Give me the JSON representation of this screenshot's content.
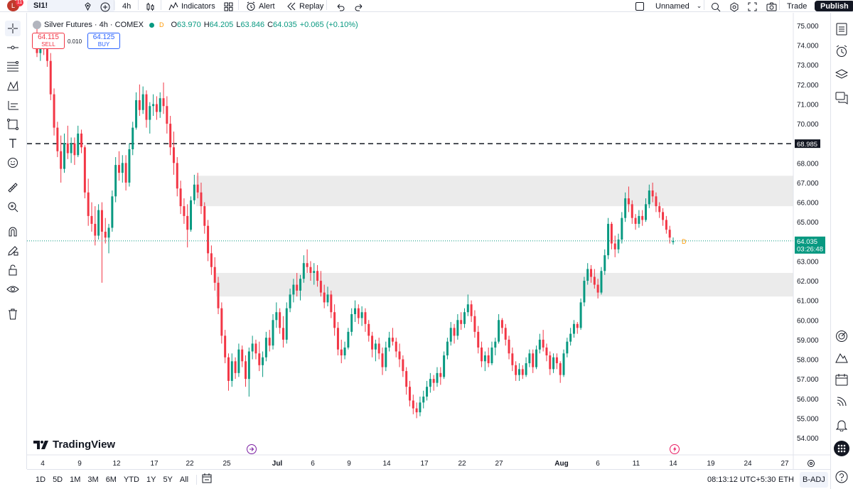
{
  "toolbar": {
    "avatar_letter": "L",
    "notification_count": "11",
    "symbol": "SI1!",
    "interval": "4h",
    "indicators_label": "Indicators",
    "alert_label": "Alert",
    "replay_label": "Replay",
    "layout_name": "Unnamed",
    "trade_label": "Trade",
    "publish_label": "Publish"
  },
  "legend": {
    "title": "Silver Futures · 4h · COMEX",
    "flag": "D",
    "open_label": "O",
    "open": "63.970",
    "high_label": "H",
    "high": "64.205",
    "low_label": "L",
    "low": "63.846",
    "close_label": "C",
    "close": "64.035",
    "change": "+0.065 (+0.10%)"
  },
  "order": {
    "sell_price": "64.115",
    "sell_label": "SELL",
    "spread": "0.010",
    "buy_price": "64.125",
    "buy_label": "BUY"
  },
  "price_tag": {
    "price": "64.035",
    "countdown": "03:26:48"
  },
  "hline_tag": "68.985",
  "brand": "TradingView",
  "bottom": {
    "ranges": [
      "1D",
      "5D",
      "1M",
      "3M",
      "6M",
      "YTD",
      "1Y",
      "5Y",
      "All"
    ],
    "clock": "08:13:12 UTC+5:30",
    "session": "ETH",
    "adjustment": "B-ADJ"
  },
  "colors": {
    "up": "#089981",
    "down": "#f23645",
    "accent": "#2962ff",
    "zone": "#ebebeb"
  },
  "chart_data": {
    "type": "candlestick",
    "symbol": "SI1!",
    "interval": "4h",
    "y_axis": {
      "ticks": [
        75,
        74,
        73,
        72,
        71,
        70,
        69,
        68,
        67,
        66,
        65,
        64,
        63,
        62,
        61,
        60,
        59,
        58,
        57,
        56,
        55,
        54
      ],
      "tick_labels": [
        "75.000",
        "74.000",
        "73.000",
        "72.000",
        "71.000",
        "70.000",
        "69.000",
        "68.000",
        "67.000",
        "66.000",
        "65.000",
        "64.000",
        "63.000",
        "62.000",
        "61.000",
        "60.000",
        "59.000",
        "58.000",
        "57.000",
        "56.000",
        "55.000",
        "54.000"
      ],
      "range": [
        53.5,
        75.1
      ]
    },
    "x_axis": {
      "labels": [
        "4",
        "9",
        "12",
        "17",
        "22",
        "25",
        "Jul",
        "6",
        "9",
        "14",
        "17",
        "22",
        "27",
        "Aug",
        "6",
        "11",
        "14",
        "19",
        "24",
        "27"
      ]
    },
    "zones": [
      {
        "from": 65.8,
        "to": 67.35
      },
      {
        "from": 61.2,
        "to": 62.4
      }
    ],
    "horizontal_line": {
      "value": 68.985,
      "style": "dashed"
    },
    "last_price": 64.035,
    "candles": [
      {
        "o": 74.6,
        "h": 74.9,
        "l": 73.4,
        "c": 73.6
      },
      {
        "o": 73.6,
        "h": 74.1,
        "l": 73.2,
        "c": 73.9
      },
      {
        "o": 73.9,
        "h": 74.4,
        "l": 73.5,
        "c": 73.8
      },
      {
        "o": 73.8,
        "h": 74.3,
        "l": 72.9,
        "c": 73.2
      },
      {
        "o": 73.2,
        "h": 73.6,
        "l": 71.2,
        "c": 71.5
      },
      {
        "o": 71.5,
        "h": 71.8,
        "l": 69.4,
        "c": 69.8
      },
      {
        "o": 69.8,
        "h": 70.1,
        "l": 68.3,
        "c": 68.6
      },
      {
        "o": 68.6,
        "h": 69.4,
        "l": 67.0,
        "c": 67.7
      },
      {
        "o": 67.7,
        "h": 69.5,
        "l": 67.5,
        "c": 69.0
      },
      {
        "o": 69.0,
        "h": 69.9,
        "l": 68.2,
        "c": 68.5
      },
      {
        "o": 68.5,
        "h": 69.3,
        "l": 68.0,
        "c": 69.0
      },
      {
        "o": 69.0,
        "h": 69.3,
        "l": 67.9,
        "c": 68.4
      },
      {
        "o": 68.4,
        "h": 69.9,
        "l": 68.3,
        "c": 69.5
      },
      {
        "o": 69.5,
        "h": 69.7,
        "l": 68.5,
        "c": 68.8
      },
      {
        "o": 68.8,
        "h": 68.9,
        "l": 66.2,
        "c": 66.5
      },
      {
        "o": 66.5,
        "h": 67.2,
        "l": 64.8,
        "c": 65.3
      },
      {
        "o": 65.3,
        "h": 66.0,
        "l": 64.5,
        "c": 64.9
      },
      {
        "o": 64.9,
        "h": 65.8,
        "l": 63.8,
        "c": 64.3
      },
      {
        "o": 64.3,
        "h": 65.9,
        "l": 64.1,
        "c": 65.6
      },
      {
        "o": 65.6,
        "h": 66.0,
        "l": 61.9,
        "c": 64.5
      },
      {
        "o": 64.5,
        "h": 65.2,
        "l": 63.9,
        "c": 64.2
      },
      {
        "o": 64.2,
        "h": 64.9,
        "l": 63.4,
        "c": 64.7
      },
      {
        "o": 64.7,
        "h": 66.6,
        "l": 64.5,
        "c": 66.3
      },
      {
        "o": 66.3,
        "h": 68.3,
        "l": 66.0,
        "c": 67.9
      },
      {
        "o": 67.9,
        "h": 68.6,
        "l": 67.1,
        "c": 67.5
      },
      {
        "o": 67.5,
        "h": 68.4,
        "l": 67.0,
        "c": 68.0
      },
      {
        "o": 68.0,
        "h": 68.4,
        "l": 66.6,
        "c": 67.0
      },
      {
        "o": 67.0,
        "h": 69.0,
        "l": 66.8,
        "c": 68.7
      },
      {
        "o": 68.7,
        "h": 70.1,
        "l": 68.4,
        "c": 69.8
      },
      {
        "o": 69.8,
        "h": 71.6,
        "l": 69.7,
        "c": 71.2
      },
      {
        "o": 71.2,
        "h": 72.0,
        "l": 70.4,
        "c": 70.7
      },
      {
        "o": 70.7,
        "h": 71.9,
        "l": 70.5,
        "c": 71.5
      },
      {
        "o": 71.5,
        "h": 71.7,
        "l": 69.8,
        "c": 70.2
      },
      {
        "o": 70.2,
        "h": 71.1,
        "l": 69.5,
        "c": 70.9
      },
      {
        "o": 70.9,
        "h": 71.5,
        "l": 70.4,
        "c": 71.0
      },
      {
        "o": 71.0,
        "h": 71.4,
        "l": 70.2,
        "c": 70.6
      },
      {
        "o": 70.6,
        "h": 71.6,
        "l": 70.3,
        "c": 71.3
      },
      {
        "o": 71.3,
        "h": 72.1,
        "l": 70.5,
        "c": 70.9
      },
      {
        "o": 70.9,
        "h": 71.4,
        "l": 69.5,
        "c": 70.0
      },
      {
        "o": 70.0,
        "h": 70.4,
        "l": 68.4,
        "c": 68.8
      },
      {
        "o": 68.8,
        "h": 69.6,
        "l": 67.4,
        "c": 68.0
      },
      {
        "o": 68.0,
        "h": 68.3,
        "l": 66.3,
        "c": 66.7
      },
      {
        "o": 66.7,
        "h": 67.1,
        "l": 65.4,
        "c": 65.8
      },
      {
        "o": 65.8,
        "h": 66.2,
        "l": 64.9,
        "c": 65.3
      },
      {
        "o": 65.3,
        "h": 65.9,
        "l": 63.7,
        "c": 64.6
      },
      {
        "o": 64.6,
        "h": 66.3,
        "l": 64.5,
        "c": 66.1
      },
      {
        "o": 66.1,
        "h": 67.4,
        "l": 65.9,
        "c": 66.9
      },
      {
        "o": 66.9,
        "h": 67.5,
        "l": 66.2,
        "c": 66.5
      },
      {
        "o": 66.5,
        "h": 67.0,
        "l": 65.4,
        "c": 65.8
      },
      {
        "o": 65.8,
        "h": 66.0,
        "l": 64.4,
        "c": 64.8
      },
      {
        "o": 64.8,
        "h": 65.1,
        "l": 63.0,
        "c": 63.4
      },
      {
        "o": 63.4,
        "h": 63.8,
        "l": 62.3,
        "c": 62.7
      },
      {
        "o": 62.7,
        "h": 63.2,
        "l": 61.5,
        "c": 61.9
      },
      {
        "o": 61.9,
        "h": 62.2,
        "l": 60.3,
        "c": 60.6
      },
      {
        "o": 60.6,
        "h": 60.9,
        "l": 58.8,
        "c": 59.2
      },
      {
        "o": 59.2,
        "h": 59.5,
        "l": 57.8,
        "c": 58.1
      },
      {
        "o": 58.1,
        "h": 58.3,
        "l": 56.4,
        "c": 56.9
      },
      {
        "o": 56.9,
        "h": 58.3,
        "l": 56.6,
        "c": 57.9
      },
      {
        "o": 57.9,
        "h": 58.1,
        "l": 57.0,
        "c": 57.3
      },
      {
        "o": 57.3,
        "h": 58.8,
        "l": 57.1,
        "c": 58.5
      },
      {
        "o": 58.5,
        "h": 58.7,
        "l": 57.6,
        "c": 57.9
      },
      {
        "o": 57.9,
        "h": 58.2,
        "l": 56.6,
        "c": 57.0
      },
      {
        "o": 57.0,
        "h": 58.6,
        "l": 56.1,
        "c": 58.4
      },
      {
        "o": 58.4,
        "h": 59.2,
        "l": 58.0,
        "c": 58.8
      },
      {
        "o": 58.8,
        "h": 59.0,
        "l": 58.0,
        "c": 58.3
      },
      {
        "o": 58.3,
        "h": 58.9,
        "l": 57.4,
        "c": 57.7
      },
      {
        "o": 57.7,
        "h": 58.4,
        "l": 57.1,
        "c": 58.1
      },
      {
        "o": 58.1,
        "h": 59.4,
        "l": 57.9,
        "c": 59.1
      },
      {
        "o": 59.1,
        "h": 59.5,
        "l": 58.4,
        "c": 58.7
      },
      {
        "o": 58.7,
        "h": 60.3,
        "l": 58.5,
        "c": 60.0
      },
      {
        "o": 60.0,
        "h": 60.9,
        "l": 59.6,
        "c": 60.4
      },
      {
        "o": 60.4,
        "h": 60.6,
        "l": 59.3,
        "c": 59.6
      },
      {
        "o": 59.6,
        "h": 60.2,
        "l": 58.6,
        "c": 59.0
      },
      {
        "o": 59.0,
        "h": 60.9,
        "l": 58.8,
        "c": 60.6
      },
      {
        "o": 60.6,
        "h": 61.6,
        "l": 60.4,
        "c": 61.3
      },
      {
        "o": 61.3,
        "h": 62.1,
        "l": 60.9,
        "c": 61.8
      },
      {
        "o": 61.8,
        "h": 62.4,
        "l": 61.2,
        "c": 61.5
      },
      {
        "o": 61.5,
        "h": 62.3,
        "l": 61.0,
        "c": 62.1
      },
      {
        "o": 62.1,
        "h": 63.3,
        "l": 61.9,
        "c": 62.9
      },
      {
        "o": 62.9,
        "h": 63.6,
        "l": 62.4,
        "c": 62.7
      },
      {
        "o": 62.7,
        "h": 63.0,
        "l": 62.0,
        "c": 62.4
      },
      {
        "o": 62.4,
        "h": 62.9,
        "l": 61.8,
        "c": 62.5
      },
      {
        "o": 62.5,
        "h": 62.8,
        "l": 61.7,
        "c": 62.0
      },
      {
        "o": 62.0,
        "h": 62.5,
        "l": 61.2,
        "c": 61.4
      },
      {
        "o": 61.4,
        "h": 61.8,
        "l": 60.6,
        "c": 60.9
      },
      {
        "o": 60.9,
        "h": 61.7,
        "l": 60.7,
        "c": 61.3
      },
      {
        "o": 61.3,
        "h": 61.5,
        "l": 60.1,
        "c": 60.4
      },
      {
        "o": 60.4,
        "h": 60.8,
        "l": 59.2,
        "c": 59.6
      },
      {
        "o": 59.6,
        "h": 59.9,
        "l": 58.2,
        "c": 58.5
      },
      {
        "o": 58.5,
        "h": 59.0,
        "l": 57.8,
        "c": 58.2
      },
      {
        "o": 58.2,
        "h": 58.9,
        "l": 58.0,
        "c": 58.6
      },
      {
        "o": 58.6,
        "h": 59.6,
        "l": 58.5,
        "c": 59.4
      },
      {
        "o": 59.4,
        "h": 60.6,
        "l": 59.2,
        "c": 60.3
      },
      {
        "o": 60.3,
        "h": 61.0,
        "l": 59.9,
        "c": 60.6
      },
      {
        "o": 60.6,
        "h": 60.8,
        "l": 59.8,
        "c": 60.1
      },
      {
        "o": 60.1,
        "h": 60.7,
        "l": 59.7,
        "c": 60.4
      },
      {
        "o": 60.4,
        "h": 60.6,
        "l": 59.4,
        "c": 59.8
      },
      {
        "o": 59.8,
        "h": 60.0,
        "l": 58.9,
        "c": 59.2
      },
      {
        "o": 59.2,
        "h": 59.4,
        "l": 58.1,
        "c": 58.5
      },
      {
        "o": 58.5,
        "h": 59.0,
        "l": 57.9,
        "c": 58.8
      },
      {
        "o": 58.8,
        "h": 59.1,
        "l": 58.0,
        "c": 58.3
      },
      {
        "o": 58.3,
        "h": 58.6,
        "l": 57.2,
        "c": 57.6
      },
      {
        "o": 57.6,
        "h": 58.9,
        "l": 57.4,
        "c": 58.6
      },
      {
        "o": 58.6,
        "h": 59.4,
        "l": 58.4,
        "c": 59.1
      },
      {
        "o": 59.1,
        "h": 59.6,
        "l": 58.7,
        "c": 58.9
      },
      {
        "o": 58.9,
        "h": 59.1,
        "l": 58.1,
        "c": 58.4
      },
      {
        "o": 58.4,
        "h": 58.8,
        "l": 57.6,
        "c": 58.0
      },
      {
        "o": 58.0,
        "h": 58.2,
        "l": 57.1,
        "c": 57.4
      },
      {
        "o": 57.4,
        "h": 57.6,
        "l": 56.2,
        "c": 56.6
      },
      {
        "o": 56.6,
        "h": 56.9,
        "l": 55.6,
        "c": 55.9
      },
      {
        "o": 55.9,
        "h": 56.2,
        "l": 55.2,
        "c": 55.5
      },
      {
        "o": 55.5,
        "h": 55.8,
        "l": 55.0,
        "c": 55.3
      },
      {
        "o": 55.3,
        "h": 56.1,
        "l": 55.1,
        "c": 55.8
      },
      {
        "o": 55.8,
        "h": 56.4,
        "l": 55.5,
        "c": 56.1
      },
      {
        "o": 56.1,
        "h": 56.9,
        "l": 55.9,
        "c": 56.6
      },
      {
        "o": 56.6,
        "h": 57.3,
        "l": 56.3,
        "c": 57.0
      },
      {
        "o": 57.0,
        "h": 57.2,
        "l": 56.4,
        "c": 56.8
      },
      {
        "o": 56.8,
        "h": 57.6,
        "l": 56.6,
        "c": 57.3
      },
      {
        "o": 57.3,
        "h": 57.6,
        "l": 56.7,
        "c": 57.1
      },
      {
        "o": 57.1,
        "h": 58.4,
        "l": 57.0,
        "c": 58.2
      },
      {
        "o": 58.2,
        "h": 59.1,
        "l": 58.0,
        "c": 58.9
      },
      {
        "o": 58.9,
        "h": 59.9,
        "l": 58.7,
        "c": 59.6
      },
      {
        "o": 59.6,
        "h": 59.8,
        "l": 58.8,
        "c": 59.2
      },
      {
        "o": 59.2,
        "h": 60.3,
        "l": 59.0,
        "c": 60.0
      },
      {
        "o": 60.0,
        "h": 60.4,
        "l": 59.5,
        "c": 59.8
      },
      {
        "o": 59.8,
        "h": 60.6,
        "l": 59.6,
        "c": 60.4
      },
      {
        "o": 60.4,
        "h": 61.3,
        "l": 60.2,
        "c": 60.8
      },
      {
        "o": 60.8,
        "h": 61.0,
        "l": 59.9,
        "c": 60.2
      },
      {
        "o": 60.2,
        "h": 60.5,
        "l": 59.1,
        "c": 59.4
      },
      {
        "o": 59.4,
        "h": 59.7,
        "l": 58.3,
        "c": 58.6
      },
      {
        "o": 58.6,
        "h": 58.9,
        "l": 57.6,
        "c": 57.9
      },
      {
        "o": 57.9,
        "h": 58.4,
        "l": 57.4,
        "c": 58.2
      },
      {
        "o": 58.2,
        "h": 58.6,
        "l": 57.6,
        "c": 57.8
      },
      {
        "o": 57.8,
        "h": 58.9,
        "l": 57.7,
        "c": 58.6
      },
      {
        "o": 58.6,
        "h": 59.1,
        "l": 58.2,
        "c": 58.9
      },
      {
        "o": 58.9,
        "h": 60.3,
        "l": 58.8,
        "c": 60.0
      },
      {
        "o": 60.0,
        "h": 60.1,
        "l": 59.3,
        "c": 59.6
      },
      {
        "o": 59.6,
        "h": 59.8,
        "l": 58.7,
        "c": 59.0
      },
      {
        "o": 59.0,
        "h": 59.2,
        "l": 58.0,
        "c": 58.3
      },
      {
        "o": 58.3,
        "h": 58.6,
        "l": 57.4,
        "c": 57.7
      },
      {
        "o": 57.7,
        "h": 57.9,
        "l": 56.9,
        "c": 57.2
      },
      {
        "o": 57.2,
        "h": 57.8,
        "l": 56.9,
        "c": 57.5
      },
      {
        "o": 57.5,
        "h": 57.7,
        "l": 57.0,
        "c": 57.2
      },
      {
        "o": 57.2,
        "h": 58.1,
        "l": 57.1,
        "c": 57.8
      },
      {
        "o": 57.8,
        "h": 58.5,
        "l": 57.6,
        "c": 58.3
      },
      {
        "o": 58.3,
        "h": 58.5,
        "l": 57.3,
        "c": 57.6
      },
      {
        "o": 57.6,
        "h": 58.7,
        "l": 57.5,
        "c": 58.5
      },
      {
        "o": 58.5,
        "h": 59.3,
        "l": 58.3,
        "c": 59.0
      },
      {
        "o": 59.0,
        "h": 59.5,
        "l": 58.4,
        "c": 58.6
      },
      {
        "o": 58.6,
        "h": 58.8,
        "l": 57.9,
        "c": 58.2
      },
      {
        "o": 58.2,
        "h": 58.4,
        "l": 57.2,
        "c": 57.5
      },
      {
        "o": 57.5,
        "h": 58.3,
        "l": 57.3,
        "c": 58.1
      },
      {
        "o": 58.1,
        "h": 58.3,
        "l": 57.5,
        "c": 57.8
      },
      {
        "o": 57.8,
        "h": 57.9,
        "l": 56.8,
        "c": 57.2
      },
      {
        "o": 57.2,
        "h": 58.5,
        "l": 57.1,
        "c": 58.3
      },
      {
        "o": 58.3,
        "h": 59.1,
        "l": 58.1,
        "c": 58.9
      },
      {
        "o": 58.9,
        "h": 59.6,
        "l": 58.7,
        "c": 59.3
      },
      {
        "o": 59.3,
        "h": 60.0,
        "l": 59.1,
        "c": 59.8
      },
      {
        "o": 59.8,
        "h": 59.9,
        "l": 59.3,
        "c": 59.6
      },
      {
        "o": 59.6,
        "h": 61.1,
        "l": 59.5,
        "c": 60.9
      },
      {
        "o": 60.9,
        "h": 62.2,
        "l": 60.7,
        "c": 62.0
      },
      {
        "o": 62.0,
        "h": 62.9,
        "l": 61.8,
        "c": 62.6
      },
      {
        "o": 62.6,
        "h": 62.8,
        "l": 61.9,
        "c": 62.2
      },
      {
        "o": 62.2,
        "h": 62.6,
        "l": 61.6,
        "c": 61.8
      },
      {
        "o": 61.8,
        "h": 62.1,
        "l": 61.1,
        "c": 61.4
      },
      {
        "o": 61.4,
        "h": 62.7,
        "l": 61.3,
        "c": 62.5
      },
      {
        "o": 62.5,
        "h": 63.6,
        "l": 62.3,
        "c": 63.3
      },
      {
        "o": 63.3,
        "h": 65.2,
        "l": 63.1,
        "c": 64.9
      },
      {
        "o": 64.9,
        "h": 65.0,
        "l": 63.6,
        "c": 63.9
      },
      {
        "o": 63.9,
        "h": 64.3,
        "l": 63.2,
        "c": 63.6
      },
      {
        "o": 63.6,
        "h": 64.4,
        "l": 63.4,
        "c": 64.1
      },
      {
        "o": 64.1,
        "h": 65.5,
        "l": 63.9,
        "c": 65.2
      },
      {
        "o": 65.2,
        "h": 66.5,
        "l": 65.0,
        "c": 66.2
      },
      {
        "o": 66.2,
        "h": 66.8,
        "l": 65.5,
        "c": 65.9
      },
      {
        "o": 65.9,
        "h": 66.1,
        "l": 64.9,
        "c": 65.2
      },
      {
        "o": 65.2,
        "h": 65.4,
        "l": 64.6,
        "c": 64.9
      },
      {
        "o": 64.9,
        "h": 65.6,
        "l": 64.7,
        "c": 65.3
      },
      {
        "o": 65.3,
        "h": 65.6,
        "l": 64.8,
        "c": 65.1
      },
      {
        "o": 65.1,
        "h": 66.2,
        "l": 65.0,
        "c": 65.9
      },
      {
        "o": 65.9,
        "h": 66.9,
        "l": 65.7,
        "c": 66.6
      },
      {
        "o": 66.6,
        "h": 67.0,
        "l": 66.0,
        "c": 66.3
      },
      {
        "o": 66.3,
        "h": 66.5,
        "l": 65.5,
        "c": 65.8
      },
      {
        "o": 65.8,
        "h": 66.0,
        "l": 65.2,
        "c": 65.5
      },
      {
        "o": 65.5,
        "h": 65.7,
        "l": 64.8,
        "c": 65.1
      },
      {
        "o": 65.1,
        "h": 65.3,
        "l": 64.4,
        "c": 64.6
      },
      {
        "o": 64.6,
        "h": 64.8,
        "l": 63.9,
        "c": 64.2
      },
      {
        "o": 63.97,
        "h": 64.205,
        "l": 63.846,
        "c": 64.035
      }
    ]
  }
}
